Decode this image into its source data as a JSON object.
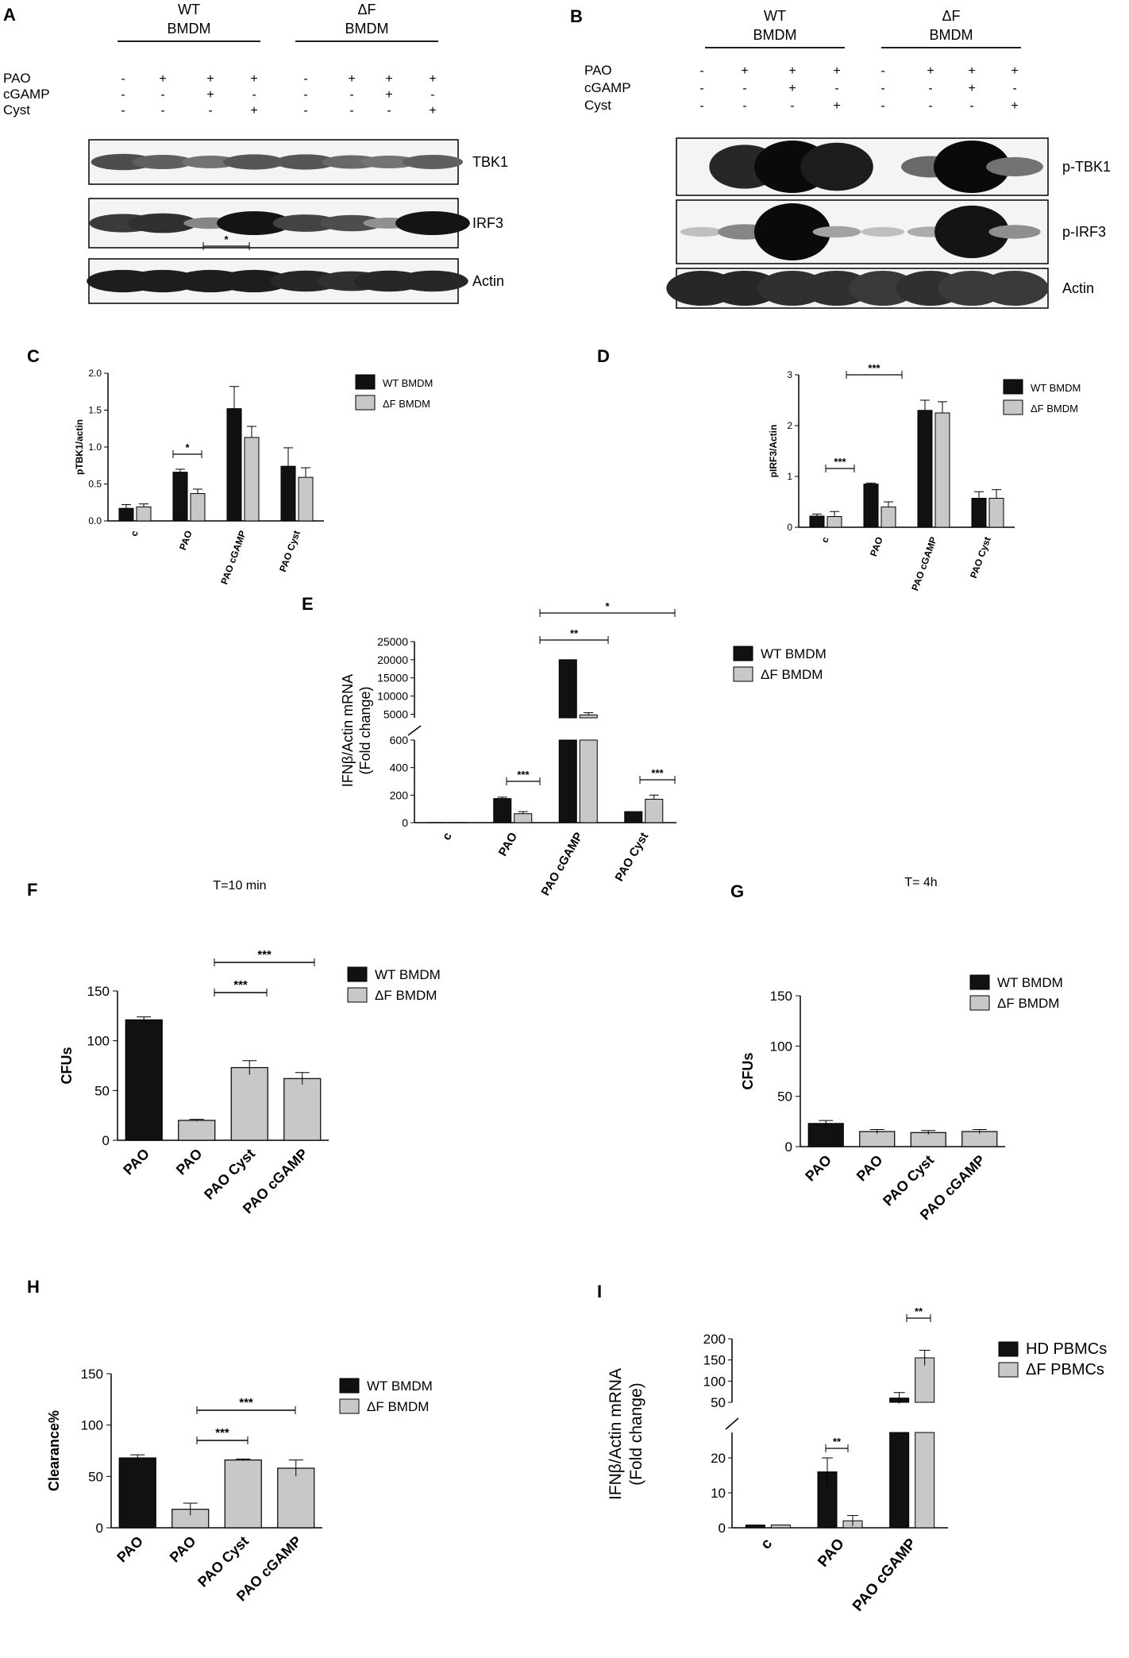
{
  "panels": {
    "A": {
      "letter": "A",
      "groups": [
        {
          "line1": "WT",
          "line2": "BMDM"
        },
        {
          "line1": "ΔF",
          "line2": "BMDM"
        }
      ],
      "rows": [
        {
          "label": "PAO",
          "signs": [
            "-",
            "+",
            "+",
            "+",
            "-",
            "+",
            "+",
            "+"
          ]
        },
        {
          "label": "cGAMP",
          "signs": [
            "-",
            "-",
            "+",
            "-",
            "-",
            "-",
            "+",
            "-"
          ]
        },
        {
          "label": "Cyst",
          "signs": [
            "-",
            "-",
            "-",
            "+",
            "-",
            "-",
            "-",
            "+"
          ]
        }
      ],
      "blots": [
        {
          "label": "TBK1",
          "intensity": [
            0.65,
            0.55,
            0.45,
            0.6,
            0.6,
            0.5,
            0.45,
            0.55
          ]
        },
        {
          "label": "IRF3",
          "intensity": [
            0.75,
            0.8,
            0.35,
            0.95,
            0.7,
            0.65,
            0.3,
            0.95
          ]
        },
        {
          "label": "Actin",
          "intensity": [
            0.9,
            0.9,
            0.9,
            0.9,
            0.85,
            0.8,
            0.85,
            0.85
          ]
        }
      ]
    },
    "B": {
      "letter": "B",
      "groups": [
        {
          "line1": "WT",
          "line2": "BMDM"
        },
        {
          "line1": "ΔF",
          "line2": "BMDM"
        }
      ],
      "rows": [
        {
          "label": "PAO",
          "signs": [
            "-",
            "+",
            "+",
            "+",
            "-",
            "+",
            "+",
            "+"
          ]
        },
        {
          "label": "cGAMP",
          "signs": [
            "-",
            "-",
            "+",
            "-",
            "-",
            "-",
            "+",
            "-"
          ]
        },
        {
          "label": "Cyst",
          "signs": [
            "-",
            "-",
            "-",
            "+",
            "-",
            "-",
            "-",
            "+"
          ]
        }
      ],
      "blots": [
        {
          "label": "p-TBK1",
          "intensity": [
            0.0,
            0.85,
            1.0,
            0.9,
            0.0,
            0.5,
            1.0,
            0.45
          ]
        },
        {
          "label": "p-IRF3",
          "intensity": [
            0.05,
            0.35,
            1.0,
            0.2,
            0.05,
            0.15,
            0.95,
            0.3
          ]
        },
        {
          "label": "Actin",
          "intensity": [
            0.85,
            0.85,
            0.8,
            0.8,
            0.75,
            0.8,
            0.75,
            0.75
          ]
        }
      ]
    }
  },
  "legend": {
    "wt": "WT BMDM",
    "df": "ΔF BMDM",
    "hd": "HD PBMCs",
    "dfp": "ΔF PBMCs"
  },
  "colors": {
    "black": "#111111",
    "gray": "#c8c8c8"
  },
  "chart_data": [
    {
      "panel": "C",
      "type": "bar",
      "ylabel": "pTBK1/actin",
      "categories": [
        "c",
        "PAO",
        "PAO cGAMP",
        "PAO Cyst"
      ],
      "ylim": [
        0,
        2.0
      ],
      "yticks": [
        "0.0",
        "0.5",
        "1.0",
        "1.5",
        "2.0"
      ],
      "series": [
        {
          "name": "WT BMDM",
          "values": [
            0.17,
            0.66,
            1.52,
            0.74
          ],
          "errors": [
            0.05,
            0.04,
            0.3,
            0.25
          ]
        },
        {
          "name": "ΔF BMDM",
          "values": [
            0.19,
            0.37,
            1.13,
            0.59
          ],
          "errors": [
            0.04,
            0.06,
            0.15,
            0.13
          ]
        }
      ],
      "annotations": [
        "*",
        "*"
      ]
    },
    {
      "panel": "D",
      "type": "bar",
      "ylabel": "pIRF3/Actin",
      "categories": [
        "c",
        "PAO",
        "PAO cGAMP",
        "PAO Cyst"
      ],
      "ylim": [
        0,
        3
      ],
      "yticks": [
        "0",
        "1",
        "2",
        "3"
      ],
      "series": [
        {
          "name": "WT BMDM",
          "values": [
            0.22,
            0.85,
            2.3,
            0.57
          ],
          "errors": [
            0.04,
            0.02,
            0.2,
            0.13
          ]
        },
        {
          "name": "ΔF BMDM",
          "values": [
            0.21,
            0.4,
            2.25,
            0.57
          ],
          "errors": [
            0.1,
            0.1,
            0.22,
            0.17
          ]
        }
      ],
      "annotations": [
        "***",
        "***"
      ]
    },
    {
      "panel": "E",
      "type": "bar",
      "ylabel_line1": "IFNβ/Actin mRNA",
      "ylabel_line2": "(Fold change)",
      "categories": [
        "c",
        "PAO",
        "PAO cGAMP",
        "PAO Cyst"
      ],
      "yticks_low": [
        "0",
        "200",
        "400",
        "600"
      ],
      "yticks_high": [
        "5000",
        "10000",
        "15000",
        "20000",
        "25000"
      ],
      "series": [
        {
          "name": "WT BMDM",
          "values": [
            1,
            175,
            20000,
            80
          ],
          "errors": [
            0,
            10,
            0,
            0
          ]
        },
        {
          "name": "ΔF BMDM",
          "values": [
            1,
            65,
            4800,
            170
          ],
          "errors": [
            0,
            15,
            600,
            30
          ]
        }
      ],
      "annotations": [
        "*",
        "**",
        "***",
        "***"
      ]
    },
    {
      "panel": "F",
      "type": "bar",
      "title": "T=10 min",
      "ylabel": "CFUs",
      "categories": [
        "PAO",
        "PAO",
        "PAO Cyst",
        "PAO cGAMP"
      ],
      "ylim": [
        0,
        150
      ],
      "yticks": [
        "0",
        "50",
        "100",
        "150"
      ],
      "values": [
        121,
        20,
        73,
        62
      ],
      "errors": [
        3,
        1,
        7,
        6
      ],
      "groups": [
        "WT BMDM",
        "ΔF BMDM",
        "ΔF BMDM",
        "ΔF BMDM"
      ],
      "annotations": [
        "***",
        "***"
      ]
    },
    {
      "panel": "G",
      "type": "bar",
      "title": "T= 4h",
      "ylabel": "CFUs",
      "categories": [
        "PAO",
        "PAO",
        "PAO Cyst",
        "PAO cGAMP"
      ],
      "ylim": [
        0,
        150
      ],
      "yticks": [
        "0",
        "50",
        "100",
        "150"
      ],
      "values": [
        23,
        15,
        14,
        15
      ],
      "errors": [
        3,
        2,
        2,
        2
      ],
      "groups": [
        "WT BMDM",
        "ΔF BMDM",
        "ΔF BMDM",
        "ΔF BMDM"
      ]
    },
    {
      "panel": "H",
      "type": "bar",
      "ylabel": "Clearance%",
      "categories": [
        "PAO",
        "PAO",
        "PAO Cyst",
        "PAO cGAMP"
      ],
      "ylim": [
        0,
        150
      ],
      "yticks": [
        "0",
        "50",
        "100",
        "150"
      ],
      "values": [
        68,
        18,
        66,
        58
      ],
      "errors": [
        3,
        6,
        1,
        8
      ],
      "groups": [
        "WT BMDM",
        "ΔF BMDM",
        "ΔF BMDM",
        "ΔF BMDM"
      ],
      "annotations": [
        "***",
        "***"
      ]
    },
    {
      "panel": "I",
      "type": "bar",
      "ylabel_line1": "IFNβ/Actin mRNA",
      "ylabel_line2": "(Fold change)",
      "categories": [
        "c",
        "PAO",
        "PAO cGAMP"
      ],
      "yticks_low": [
        "0",
        "10",
        "20"
      ],
      "yticks_high": [
        "50",
        "100",
        "150",
        "200"
      ],
      "series": [
        {
          "name": "HD PBMCs",
          "values": [
            0.8,
            16,
            60
          ],
          "errors": [
            0,
            4,
            13
          ]
        },
        {
          "name": "ΔF PBMCs",
          "values": [
            0.8,
            2,
            155
          ],
          "errors": [
            0,
            1.5,
            18
          ]
        }
      ],
      "annotations": [
        "**",
        "**"
      ]
    }
  ]
}
